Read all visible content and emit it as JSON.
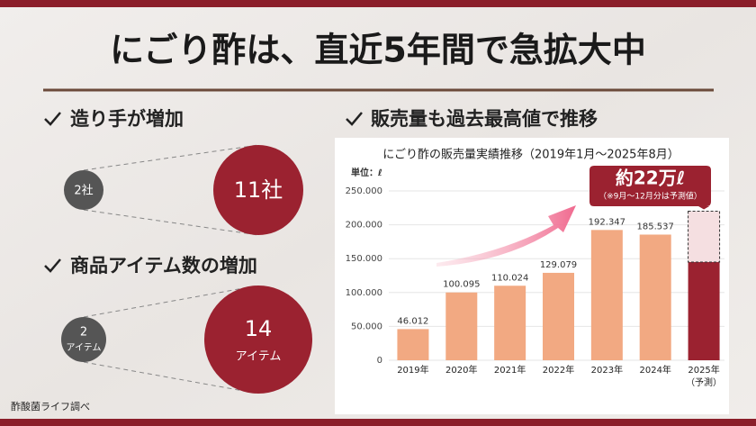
{
  "title": "にごり酢は、直近5年間で急拡大中",
  "makers": {
    "heading": "造り手が増加",
    "before": [
      "2社"
    ],
    "after": [
      "11社"
    ]
  },
  "items": {
    "heading": "商品アイテム数の増加",
    "before": [
      "2",
      "アイテム"
    ],
    "after": [
      "14",
      "アイテム"
    ]
  },
  "sales_heading": "販売量も過去最高値で推移",
  "source": "酢酸菌ライフ調べ",
  "chart_data": {
    "type": "bar",
    "title": "にごり酢の販売量実績推移（2019年1月～2025年8月）",
    "y_unit": "単位：ℓ",
    "categories": [
      "2019年",
      "2020年",
      "2021年",
      "2022年",
      "2023年",
      "2024年",
      "2025年"
    ],
    "category_notes": [
      null,
      null,
      null,
      null,
      null,
      null,
      "（予測）"
    ],
    "values": [
      46012,
      100095,
      110024,
      129079,
      192347,
      185537,
      145000
    ],
    "value_labels": [
      "46.012",
      "100.095",
      "110.024",
      "129.079",
      "192.347",
      "185.537",
      null
    ],
    "colors": [
      "#f2a982",
      "#f2a982",
      "#f2a982",
      "#f2a982",
      "#f2a982",
      "#f2a982",
      "#9b2230"
    ],
    "forecast": {
      "values": [
        null,
        null,
        null,
        null,
        null,
        null,
        75000
      ],
      "color": "#f5dfe1",
      "label": "約22万ℓ",
      "note": "（※9月～12月分は予測値）"
    },
    "ylim": [
      0,
      250000
    ],
    "yticks": [
      0,
      {
        "value": 50000,
        "label": "50.000"
      },
      {
        "value": 100000,
        "label": "100.000"
      },
      {
        "value": 150000,
        "label": "150.000"
      },
      {
        "value": 200000,
        "label": "200.000"
      },
      {
        "value": 250000,
        "label": "250.000"
      }
    ],
    "grid": true
  }
}
